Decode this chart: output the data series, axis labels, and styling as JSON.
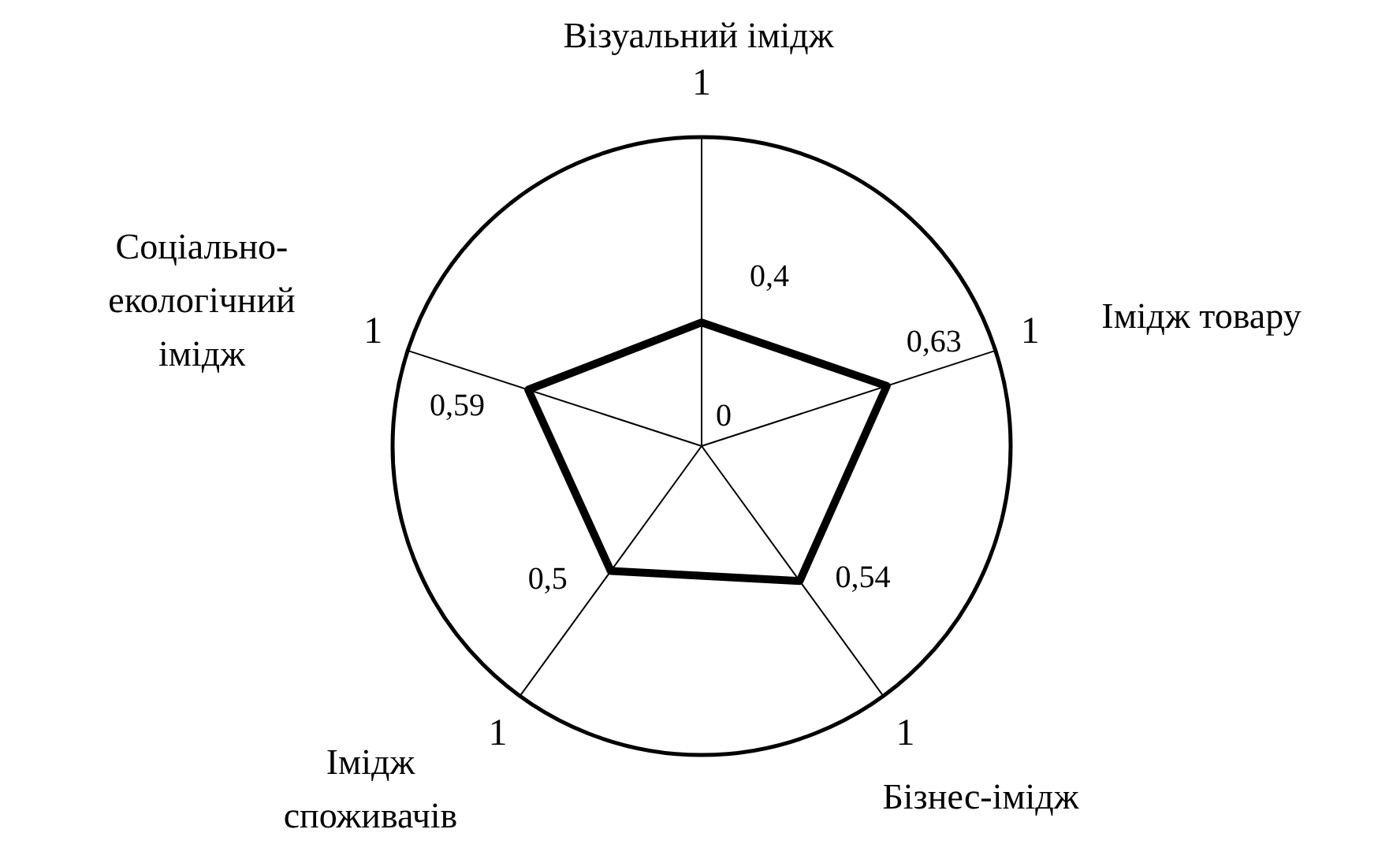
{
  "chart_data": {
    "type": "radar",
    "categories": [
      "Візуальний імідж",
      "Імідж товару",
      "Бізнес-імідж",
      "Імідж споживачів",
      "Соціально-екологічний імідж"
    ],
    "series": [
      {
        "color": "#000000",
        "values": [
          0.4,
          0.63,
          0.54,
          0.5,
          0.59
        ],
        "value_labels": [
          "0,4",
          "0,63",
          "0,54",
          "0,5",
          "0,59"
        ]
      }
    ],
    "ylim": [
      0,
      1
    ],
    "yticks": [
      0,
      1
    ],
    "annotations": [
      "1",
      "1",
      "1",
      "1"
    ]
  }
}
